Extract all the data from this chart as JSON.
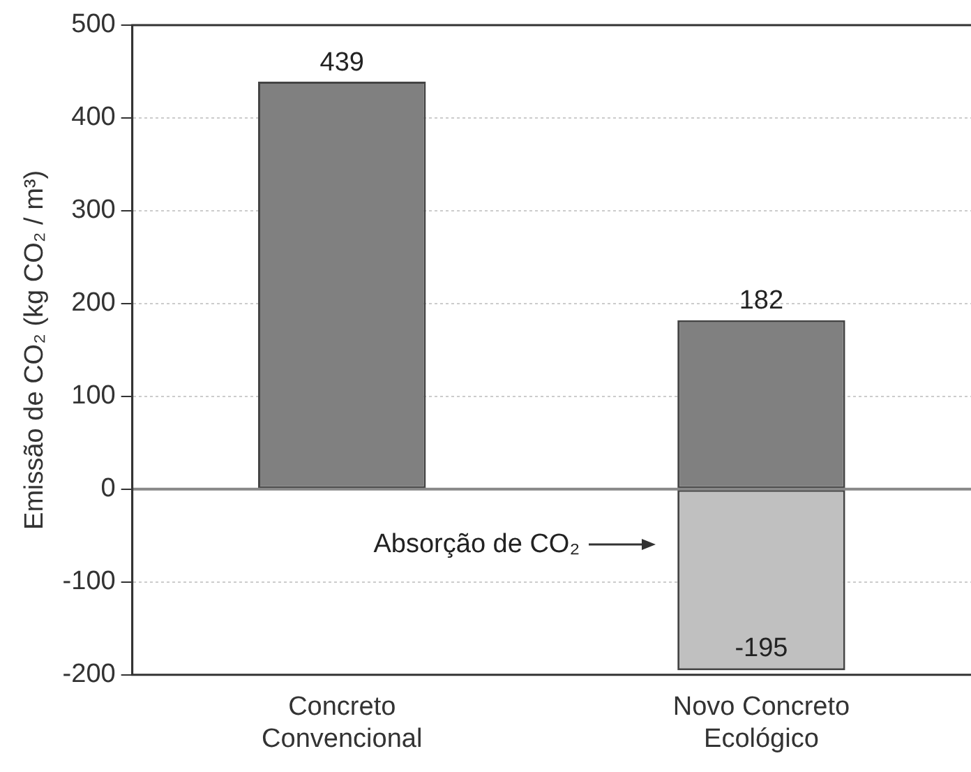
{
  "chart_data": {
    "type": "bar",
    "stacked": true,
    "ylabel": "Emissão de CO₂ (kg CO₂ / m³)",
    "categories": [
      "Concreto Convencional",
      "Novo Concreto Ecológico"
    ],
    "series": [
      {
        "color": "#808080",
        "values": [
          439,
          182
        ]
      },
      {
        "color": "#c0c0c0",
        "values": [
          null,
          -195
        ]
      }
    ],
    "ylim": [
      -200,
      500
    ],
    "yticks": [
      -200,
      -100,
      0,
      100,
      200,
      300,
      400,
      500
    ],
    "grid": "y",
    "data_labels": true,
    "legend": false,
    "ref_lines": [
      {
        "axis": "y",
        "value": 0,
        "color": "#888888"
      }
    ],
    "annotations": [
      "Absorção de CO₂"
    ]
  }
}
